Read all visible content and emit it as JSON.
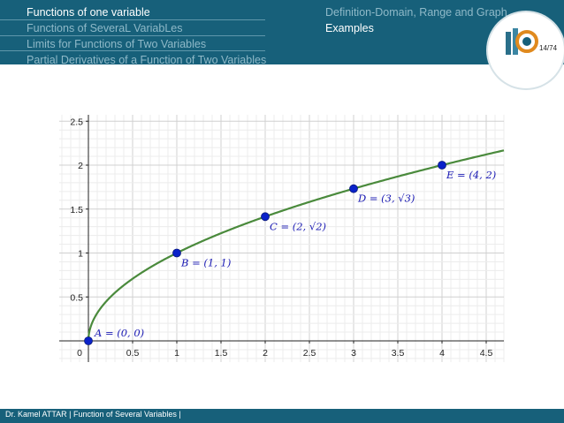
{
  "header": {
    "nav_left": [
      {
        "label": "Functions of one variable",
        "active": true
      },
      {
        "label": "Functions of SeveraL VariabLes",
        "active": false
      },
      {
        "label": "Limits for Functions of Two Variables",
        "active": false
      },
      {
        "label": "Partial Derivatives of a Function of Two Variables",
        "active": false
      }
    ],
    "nav_right": [
      {
        "label": "Definition-Domain, Range and Graph",
        "active": false
      },
      {
        "label": "Examples",
        "active": true
      }
    ],
    "page_indicator": "14/74"
  },
  "colors": {
    "header_bg": "#17607a",
    "curve": "#4a8a3c",
    "point": "#0a22c9",
    "label": "#1a1ab3"
  },
  "chart_data": {
    "type": "line",
    "function": "y = sqrt(x)",
    "xlim": [
      0,
      4.7
    ],
    "ylim": [
      0,
      2.55
    ],
    "grid": true,
    "x_ticks": [
      "0",
      "0.5",
      "1",
      "1.5",
      "2",
      "2.5",
      "3",
      "3.5",
      "4",
      "4.5"
    ],
    "y_ticks": [
      "0.5",
      "1",
      "1.5",
      "2",
      "2.5"
    ],
    "points": [
      {
        "x": 0,
        "y": 0,
        "label": "A = (0, 0)"
      },
      {
        "x": 1,
        "y": 1,
        "label": "B = (1, 1)"
      },
      {
        "x": 2,
        "y": 1.414,
        "label": "C = (2, √2)"
      },
      {
        "x": 3,
        "y": 1.732,
        "label": "D = (3, √3)"
      },
      {
        "x": 4,
        "y": 2,
        "label": "E = (4, 2)"
      }
    ]
  },
  "footer": {
    "text": "Dr. Kamel ATTAR | Function of Several Variables |"
  }
}
